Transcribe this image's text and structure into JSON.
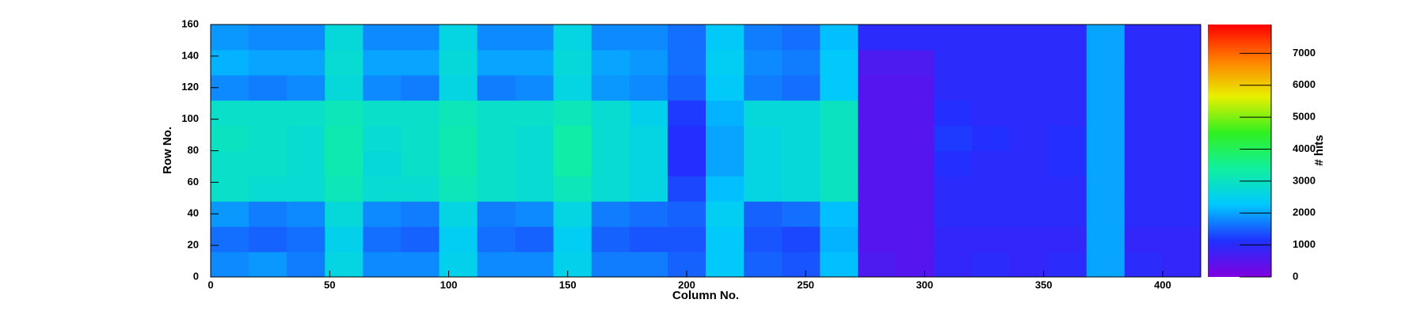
{
  "chart_data": {
    "type": "heatmap",
    "x_label": "Column No.",
    "y_label": "Row No.",
    "z_label": "# hits",
    "xbins": [
      0,
      16,
      32,
      48,
      64,
      80,
      96,
      112,
      128,
      144,
      160,
      176,
      192,
      208,
      224,
      240,
      256,
      272,
      288,
      304,
      320,
      336,
      352,
      368,
      384,
      400,
      416
    ],
    "ybins": [
      0,
      16,
      32,
      48,
      64,
      80,
      96,
      112,
      128,
      144,
      160
    ],
    "z": [
      [
        1800,
        1900,
        1700,
        2600,
        1800,
        1800,
        2500,
        1800,
        1800,
        2500,
        1700,
        1700,
        1500,
        2300,
        1500,
        1400,
        2200,
        600,
        500,
        900,
        1000,
        900,
        1000,
        2000,
        1000,
        900
      ],
      [
        1600,
        1500,
        1600,
        2500,
        1600,
        1500,
        2400,
        1600,
        1500,
        2400,
        1500,
        1400,
        1400,
        2300,
        1400,
        1300,
        2100,
        500,
        500,
        900,
        900,
        900,
        900,
        2000,
        900,
        900
      ],
      [
        1900,
        1700,
        1800,
        2700,
        1800,
        1700,
        2600,
        1700,
        1800,
        2600,
        1700,
        1600,
        1500,
        2400,
        1500,
        1600,
        2200,
        500,
        500,
        1000,
        1000,
        1000,
        1000,
        2000,
        1000,
        1000
      ],
      [
        2900,
        2800,
        2800,
        3100,
        2800,
        2800,
        3100,
        2900,
        2800,
        3100,
        2800,
        2600,
        1300,
        2200,
        2600,
        2700,
        3000,
        500,
        500,
        1000,
        1000,
        1000,
        1000,
        2000,
        1000,
        1000
      ],
      [
        2900,
        2900,
        2800,
        3200,
        2700,
        2900,
        3200,
        2900,
        2800,
        3300,
        2800,
        2600,
        1100,
        2000,
        2600,
        2700,
        3000,
        500,
        500,
        1100,
        1000,
        1000,
        1100,
        2000,
        1000,
        1000
      ],
      [
        3000,
        2900,
        2800,
        3200,
        2800,
        2900,
        3200,
        2900,
        2800,
        3300,
        2800,
        2600,
        1100,
        2000,
        2600,
        2700,
        3000,
        500,
        500,
        1200,
        1100,
        1000,
        1100,
        2000,
        1000,
        1000
      ],
      [
        2900,
        2900,
        2900,
        3100,
        2900,
        2900,
        3100,
        2900,
        2900,
        3100,
        2800,
        2500,
        1200,
        2100,
        2700,
        2700,
        3000,
        500,
        500,
        1100,
        1000,
        1000,
        1000,
        2000,
        1000,
        1000
      ],
      [
        1800,
        1700,
        1800,
        2700,
        1800,
        1700,
        2600,
        1700,
        1800,
        2600,
        1900,
        1800,
        1500,
        2300,
        1700,
        1600,
        2300,
        500,
        500,
        1000,
        1000,
        1000,
        1000,
        2000,
        1000,
        1000
      ],
      [
        2100,
        2000,
        2000,
        2800,
        2000,
        2000,
        2700,
        2000,
        2000,
        2700,
        2000,
        1900,
        1600,
        2400,
        1800,
        1700,
        2300,
        600,
        600,
        1000,
        1000,
        1000,
        1000,
        2000,
        1000,
        1000
      ],
      [
        1900,
        1800,
        1800,
        2700,
        1800,
        1800,
        2600,
        1800,
        1800,
        2600,
        1800,
        1800,
        1600,
        2300,
        1700,
        1600,
        2200,
        1000,
        1000,
        1000,
        1000,
        1000,
        1000,
        2000,
        1000,
        1000
      ]
    ],
    "xlim": [
      0,
      416
    ],
    "xticks": [
      0,
      50,
      100,
      150,
      200,
      250,
      300,
      350,
      400
    ],
    "ylim": [
      0,
      160
    ],
    "yticks": [
      0,
      20,
      40,
      60,
      80,
      100,
      120,
      140,
      160
    ],
    "zlim": [
      0,
      7900
    ],
    "zticks": [
      0,
      1000,
      2000,
      3000,
      4000,
      5000,
      6000,
      7000
    ],
    "colorscale": [
      "#8000e0",
      "#2030ff",
      "#00c8ff",
      "#10f0a0",
      "#30f020",
      "#e8f000",
      "#ff8000",
      "#ff0000"
    ]
  }
}
